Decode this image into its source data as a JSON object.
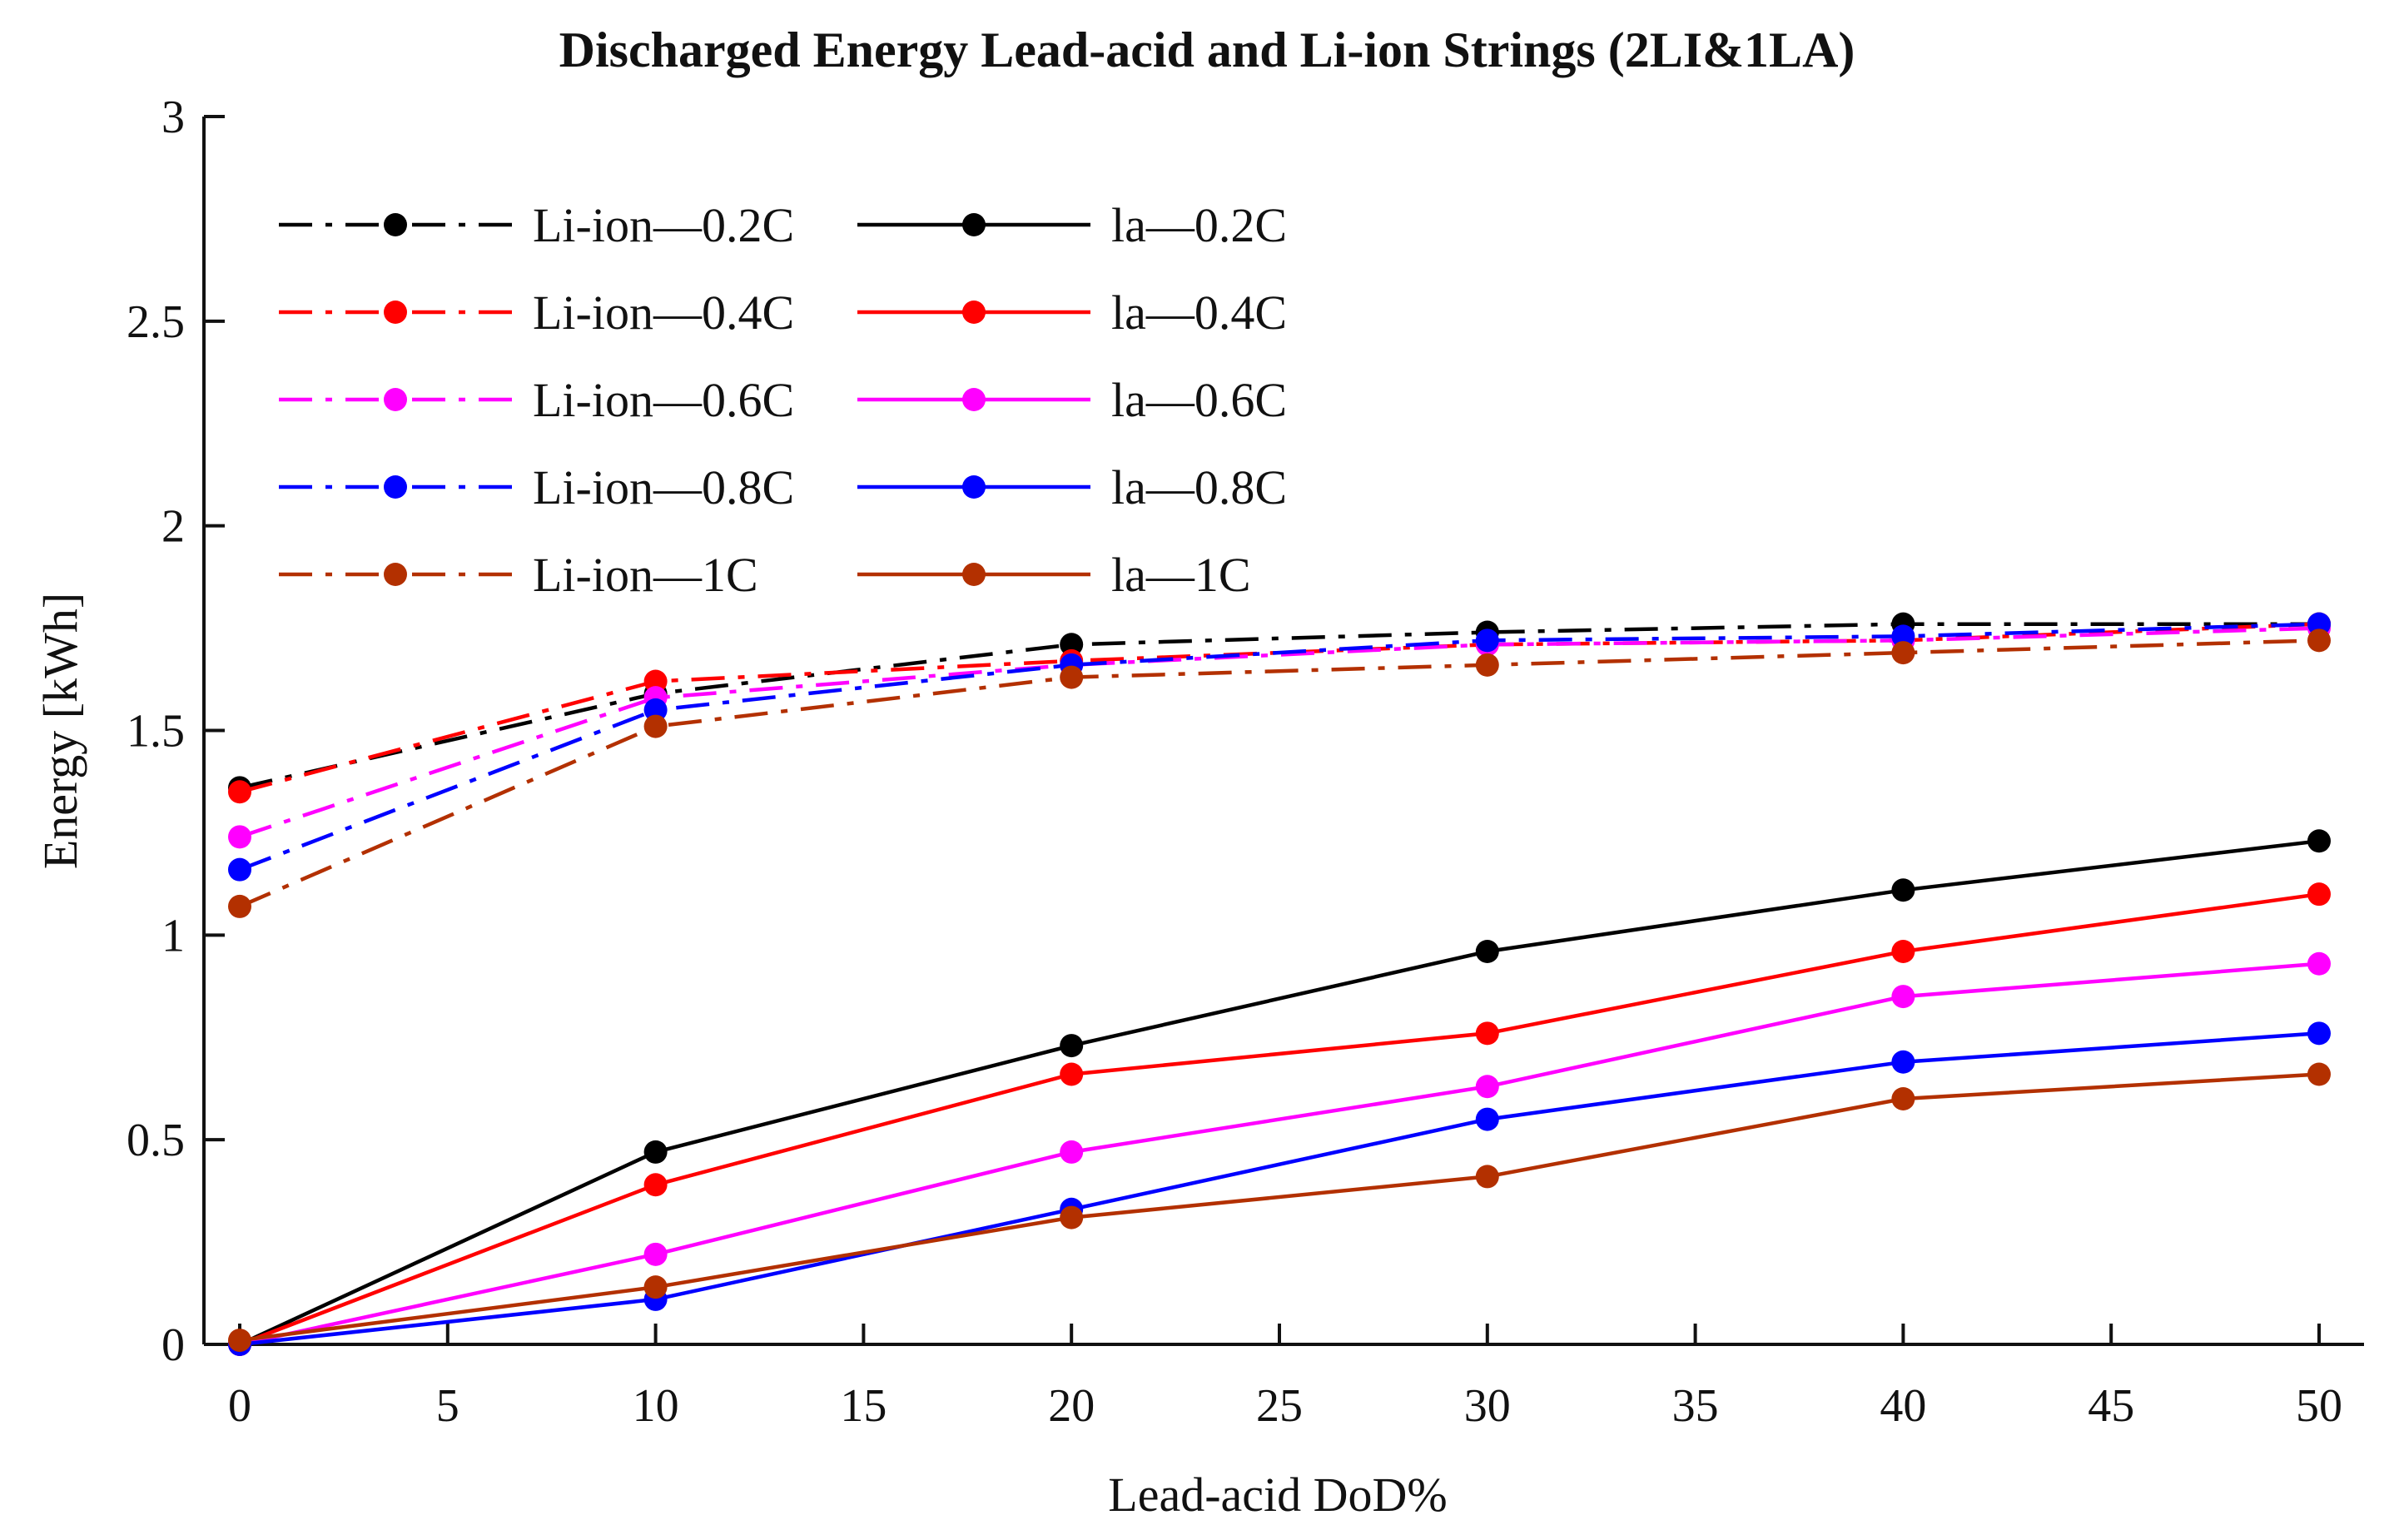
{
  "chart_data": {
    "type": "line",
    "title": "Discharged Energy Lead-acid and Li-ion Strings (2LI&1LA)",
    "xlabel": "Lead-acid DoD%",
    "ylabel": "Energy [kWh]",
    "xlim": [
      0,
      50
    ],
    "ylim": [
      0,
      3
    ],
    "xticks": [
      0,
      5,
      10,
      15,
      20,
      25,
      30,
      35,
      40,
      45,
      50
    ],
    "yticks": [
      0,
      0.5,
      1,
      1.5,
      2,
      2.5,
      3
    ],
    "xtick_labels": [
      "0",
      "5",
      "10",
      "15",
      "20",
      "25",
      "30",
      "35",
      "40",
      "45",
      "50"
    ],
    "ytick_labels": [
      "0",
      "0.5",
      "1",
      "1.5",
      "2",
      "2.5",
      "3"
    ],
    "x": [
      0,
      10,
      20,
      30,
      40,
      50
    ],
    "grid": false,
    "legend_position": "top-left",
    "legend_columns": 2,
    "series": [
      {
        "name": "Li-ion—0.2C",
        "color": "#000000",
        "style": "dashdot",
        "values": [
          1.36,
          1.59,
          1.71,
          1.74,
          1.76,
          1.76
        ]
      },
      {
        "name": "Li-ion—0.4C",
        "color": "#ff0000",
        "style": "dashdot",
        "values": [
          1.35,
          1.62,
          1.67,
          1.71,
          1.72,
          1.76
        ]
      },
      {
        "name": "Li-ion—0.6C",
        "color": "#ff00ff",
        "style": "dashdot",
        "values": [
          1.24,
          1.58,
          1.66,
          1.71,
          1.72,
          1.75
        ]
      },
      {
        "name": "Li-ion—0.8C",
        "color": "#0000ff",
        "style": "dashdot",
        "values": [
          1.16,
          1.55,
          1.66,
          1.72,
          1.73,
          1.76
        ]
      },
      {
        "name": "Li-ion—1C",
        "color": "#b33000",
        "style": "dashdot",
        "values": [
          1.07,
          1.51,
          1.63,
          1.66,
          1.69,
          1.72
        ]
      },
      {
        "name": "la—0.2C",
        "color": "#000000",
        "style": "solid",
        "values": [
          0.0,
          0.47,
          0.73,
          0.96,
          1.11,
          1.23
        ]
      },
      {
        "name": "la—0.4C",
        "color": "#ff0000",
        "style": "solid",
        "values": [
          0.0,
          0.39,
          0.66,
          0.76,
          0.96,
          1.1
        ]
      },
      {
        "name": "la—0.6C",
        "color": "#ff00ff",
        "style": "solid",
        "values": [
          0.0,
          0.22,
          0.47,
          0.63,
          0.85,
          0.93
        ]
      },
      {
        "name": "la—0.8C",
        "color": "#0000ff",
        "style": "solid",
        "values": [
          0.0,
          0.11,
          0.33,
          0.55,
          0.69,
          0.76
        ]
      },
      {
        "name": "la—1C",
        "color": "#b33000",
        "style": "solid",
        "values": [
          0.01,
          0.14,
          0.31,
          0.41,
          0.6,
          0.66
        ]
      }
    ]
  }
}
